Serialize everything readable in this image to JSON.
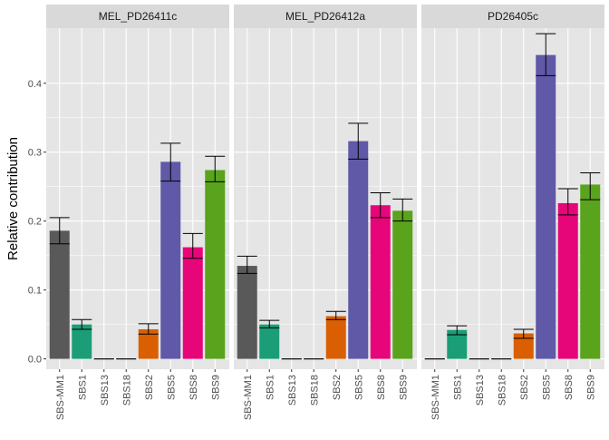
{
  "chart_data": {
    "type": "bar",
    "ylabel": "Relative contribution",
    "xlabel": "",
    "ylim": [
      -0.015,
      0.48
    ],
    "yticks": [
      0.0,
      0.1,
      0.2,
      0.3,
      0.4
    ],
    "ytick_labels": [
      "0.0",
      "0.1",
      "0.2",
      "0.3",
      "0.4"
    ],
    "categories": [
      "SBS-MM1",
      "SBS1",
      "SBS13",
      "SBS18",
      "SBS2",
      "SBS5",
      "SBS8",
      "SBS9"
    ],
    "colors": [
      "#595959",
      "#1B9E77",
      "#1B9E77",
      "#1B9E77",
      "#D95F02",
      "#6059A8",
      "#E7057A",
      "#5AA31C"
    ],
    "background": "#E5E5E5",
    "gridline_color": "#FFFFFF",
    "facets": [
      {
        "name": "MEL_PD26411c",
        "values": [
          0.186,
          0.05,
          0.0,
          0.0,
          0.043,
          0.286,
          0.162,
          0.274
        ],
        "err_low": [
          0.167,
          0.043,
          0.0,
          0.0,
          0.036,
          0.258,
          0.146,
          0.257
        ],
        "err_high": [
          0.205,
          0.057,
          0.0,
          0.0,
          0.051,
          0.313,
          0.182,
          0.294
        ]
      },
      {
        "name": "MEL_PD26412a",
        "values": [
          0.135,
          0.05,
          0.0,
          0.0,
          0.062,
          0.316,
          0.223,
          0.215
        ],
        "err_low": [
          0.124,
          0.045,
          0.0,
          0.0,
          0.057,
          0.29,
          0.205,
          0.2
        ],
        "err_high": [
          0.149,
          0.056,
          0.0,
          0.0,
          0.069,
          0.342,
          0.241,
          0.232
        ]
      },
      {
        "name": "PD26405c",
        "values": [
          0.0,
          0.042,
          0.0,
          0.0,
          0.037,
          0.441,
          0.226,
          0.253
        ],
        "err_low": [
          0.0,
          0.035,
          0.0,
          0.0,
          0.03,
          0.411,
          0.209,
          0.231
        ],
        "err_high": [
          0.0,
          0.048,
          0.0,
          0.0,
          0.043,
          0.472,
          0.247,
          0.27
        ]
      }
    ]
  }
}
